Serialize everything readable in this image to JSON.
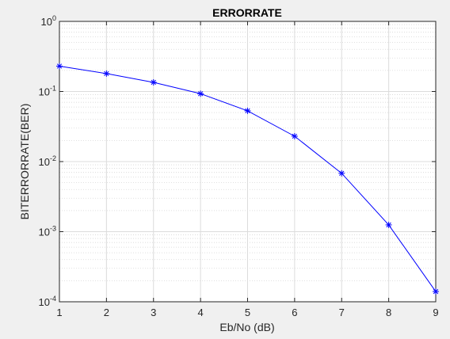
{
  "chart_data": {
    "type": "line",
    "title": "ERRORRATE",
    "xlabel": "Eb/No (dB)",
    "ylabel": "BITERRORRATE(BER)",
    "xlim": [
      1,
      9
    ],
    "ylim": [
      0.0001,
      1
    ],
    "yscale": "log",
    "grid": true,
    "minor_grid": true,
    "x_ticks": [
      "1",
      "2",
      "3",
      "4",
      "5",
      "6",
      "7",
      "8",
      "9"
    ],
    "y_ticks": [
      {
        "base": "10",
        "exp": "-4"
      },
      {
        "base": "10",
        "exp": "-3"
      },
      {
        "base": "10",
        "exp": "-2"
      },
      {
        "base": "10",
        "exp": "-1"
      },
      {
        "base": "10",
        "exp": "0"
      }
    ],
    "series": [
      {
        "color": "#0000ff",
        "marker": "asterisk",
        "x": [
          1,
          2,
          3,
          4,
          5,
          6,
          7,
          8,
          9
        ],
        "y": [
          0.23,
          0.18,
          0.135,
          0.093,
          0.053,
          0.023,
          0.0068,
          0.00125,
          0.00014
        ]
      }
    ]
  }
}
